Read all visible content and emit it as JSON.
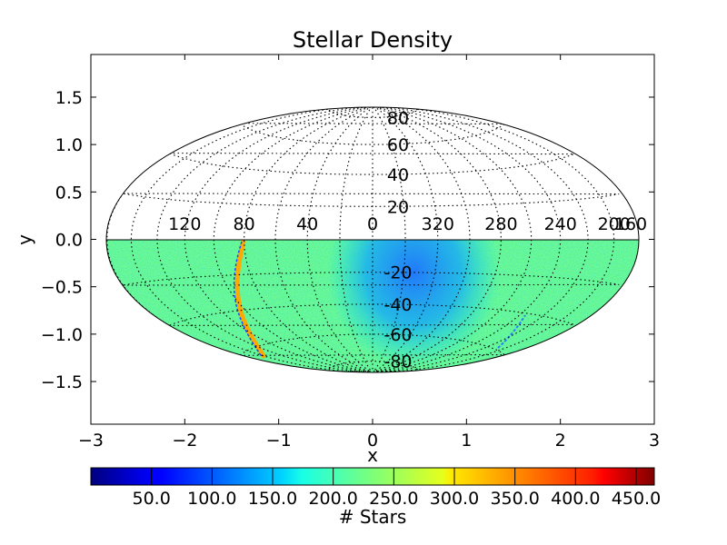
{
  "chart_data": {
    "type": "heatmap",
    "projection": "Hammer-Aitoff all-sky (galactic coordinates)",
    "title": "Stellar Density",
    "xlabel": "x",
    "ylabel": "y",
    "xlim": [
      -3,
      3
    ],
    "ylim": [
      -1.95,
      1.95
    ],
    "x_ticks": [
      "−3",
      "−2",
      "−1",
      "0",
      "1",
      "2",
      "3"
    ],
    "y_ticks": [
      "−1.5",
      "−1.0",
      "−0.5",
      "0.0",
      "0.5",
      "1.0",
      "1.5"
    ],
    "longitude_labels": [
      "200",
      "240",
      "280",
      "320",
      "0",
      "40",
      "80",
      "120",
      "160"
    ],
    "latitude_labels_north": [
      "80",
      "60",
      "40",
      "20"
    ],
    "latitude_labels_south": [
      "-20",
      "-40",
      "-60",
      "-80"
    ],
    "grid": "dotted graticule every 20 degrees",
    "coverage": "southern hemisphere only (latitude < 0)",
    "colorbar": {
      "label": "# Stars",
      "orientation": "horizontal",
      "placement": "bottom",
      "range": [
        0,
        465
      ],
      "tick_labels": [
        "50.0",
        "100.0",
        "150.0",
        "200.0",
        "250.0",
        "300.0",
        "350.0",
        "400.0",
        "450.0"
      ],
      "colormap": "jet"
    },
    "density_features": [
      {
        "name": "background",
        "value": 225
      },
      {
        "name": "low-density region near l=20, b=-35",
        "value": 150
      },
      {
        "name": "dense stream near l=265",
        "value": 330
      }
    ]
  }
}
